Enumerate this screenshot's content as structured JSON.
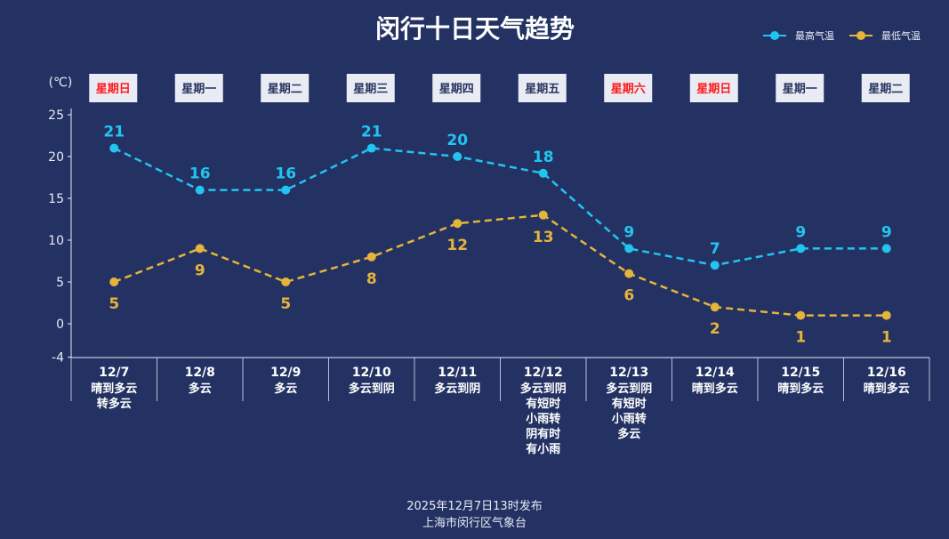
{
  "chart_data": {
    "type": "line",
    "title": "闵行十日天气趋势",
    "ylabel": "(℃)",
    "ylim": [
      -4,
      25
    ],
    "yticks": [
      25,
      20,
      15,
      10,
      5,
      0,
      -4
    ],
    "categories": [
      "12/7",
      "12/8",
      "12/9",
      "12/10",
      "12/11",
      "12/12",
      "12/13",
      "12/14",
      "12/15",
      "12/16"
    ],
    "weekdays": [
      "星期日",
      "星期一",
      "星期二",
      "星期三",
      "星期四",
      "星期五",
      "星期六",
      "星期日",
      "星期一",
      "星期二"
    ],
    "weekend": [
      true,
      false,
      false,
      false,
      false,
      false,
      true,
      true,
      false,
      false
    ],
    "weather": [
      [
        "晴到多云",
        "转多云"
      ],
      [
        "多云"
      ],
      [
        "多云"
      ],
      [
        "多云到阴"
      ],
      [
        "多云到阴"
      ],
      [
        "多云到阴",
        "有短时",
        "小雨转",
        "阴有时",
        "有小雨"
      ],
      [
        "多云到阴",
        "有短时",
        "小雨转",
        "多云"
      ],
      [
        "晴到多云"
      ],
      [
        "晴到多云"
      ],
      [
        "晴到多云"
      ]
    ],
    "series": [
      {
        "name": "最高气温",
        "color": "#22c4f0",
        "values": [
          21,
          16,
          16,
          21,
          20,
          18,
          9,
          7,
          9,
          9
        ],
        "label_pos": "above"
      },
      {
        "name": "最低气温",
        "color": "#e5b43a",
        "values": [
          5,
          9,
          5,
          8,
          12,
          13,
          6,
          2,
          1,
          1
        ],
        "label_pos": "below"
      }
    ],
    "legend": "top-right"
  },
  "footer": {
    "publish_time": "2025年12月7日13时发布",
    "publisher": "上海市闵行区气象台"
  },
  "colors": {
    "background": "#243263",
    "weekend_text": "#ff1a1a",
    "weekday_text": "#2a3560",
    "weekday_box": "#e9ecf4"
  }
}
